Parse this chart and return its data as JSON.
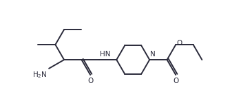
{
  "background": "#ffffff",
  "line_color": "#2a2a3a",
  "line_width": 1.4,
  "font_size": 7.5,
  "fig_width": 3.66,
  "fig_height": 1.53,
  "dpi": 100,
  "xlim": [
    0,
    10.2
  ],
  "ylim": [
    0,
    4.3
  ]
}
